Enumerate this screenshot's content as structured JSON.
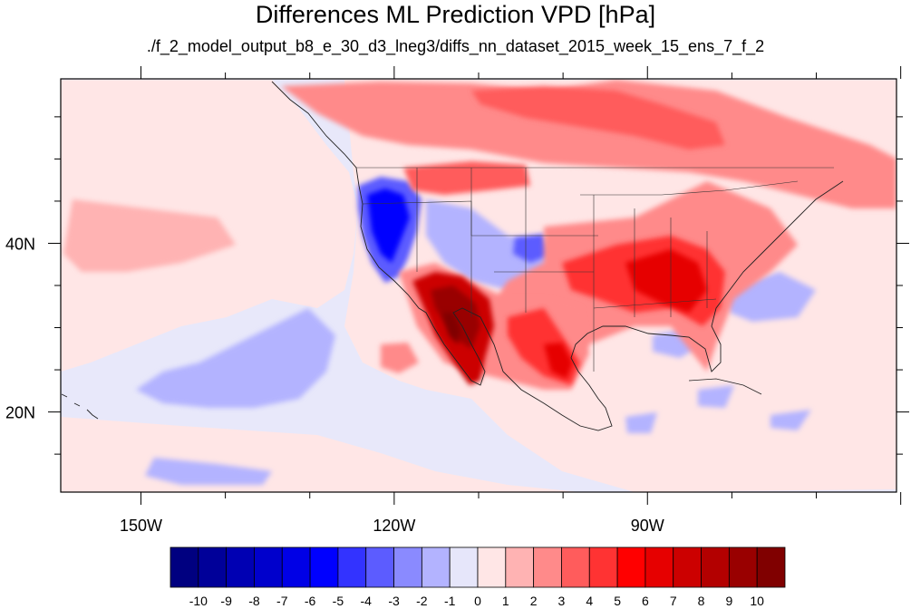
{
  "title": "Differences ML Prediction VPD [hPa]",
  "subtitle": "./f_2_model_output_b8_e_30_d3_lneg3/diffs_nn_dataset_2015_week_15_ens_7_f_2",
  "map": {
    "projection": "cylindrical-equidistant",
    "lon_range": [
      -159.5,
      -60.5
    ],
    "lat_range": [
      10.5,
      59.5
    ],
    "x_ticks": [
      {
        "lon": -150,
        "label": "150W"
      },
      {
        "lon": -120,
        "label": "120W"
      },
      {
        "lon": -90,
        "label": "90W"
      }
    ],
    "y_ticks": [
      {
        "lat": 40,
        "label": "40N"
      },
      {
        "lat": 20,
        "label": "20N"
      }
    ],
    "background_color": "#e8e8fa"
  },
  "colorbar": {
    "colors": [
      "#000080",
      "#000099",
      "#0000b3",
      "#0000cc",
      "#0000e6",
      "#0000ff",
      "#3333ff",
      "#5c5cff",
      "#8a8aff",
      "#b3b3ff",
      "#e6e6fa",
      "#ffe6e6",
      "#ffb3b3",
      "#ff8a8a",
      "#ff5c5c",
      "#ff3333",
      "#ff0000",
      "#e60000",
      "#cc0000",
      "#b30000",
      "#990000",
      "#800000"
    ],
    "labels": [
      "-10",
      "-9",
      "-8",
      "-7",
      "-6",
      "-5",
      "-4",
      "-3",
      "-2",
      "-1",
      "0",
      "1",
      "2",
      "3",
      "4",
      "5",
      "6",
      "7",
      "8",
      "9",
      "10"
    ]
  }
}
